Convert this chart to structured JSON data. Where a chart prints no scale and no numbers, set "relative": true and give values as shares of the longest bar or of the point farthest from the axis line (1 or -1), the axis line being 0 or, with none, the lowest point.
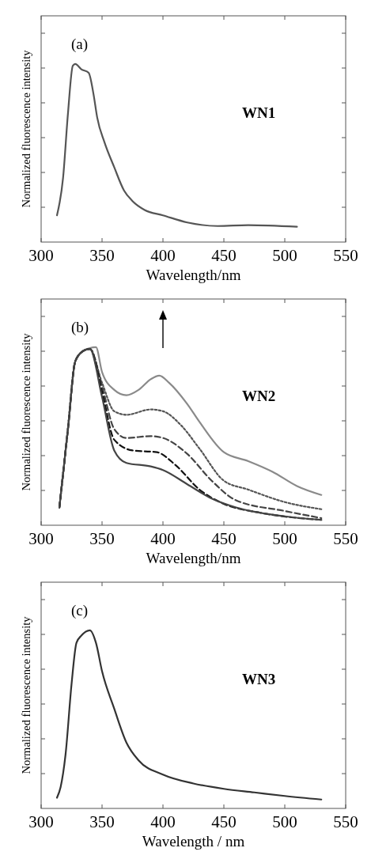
{
  "chart_data": [
    {
      "type": "line",
      "relative": true,
      "xlabel": "Wavelength/nm",
      "ylabel": "Normalized fluorescence intensity",
      "xlim": [
        300,
        550
      ],
      "xticks": [
        300,
        350,
        400,
        450,
        500,
        550
      ],
      "tick_labels": "x",
      "annotations": [
        "(a)",
        "WN1"
      ],
      "series": [
        {
          "color": "#555555",
          "line_style": "solid",
          "x": [
            313,
            318,
            322,
            326,
            328,
            333,
            339,
            343,
            346,
            352,
            360,
            368,
            375,
            385,
            400,
            420,
            445,
            470,
            510
          ],
          "values": [
            0.15,
            0.36,
            0.72,
            0.99,
            1.0,
            0.97,
            0.95,
            0.83,
            0.7,
            0.56,
            0.42,
            0.29,
            0.23,
            0.18,
            0.15,
            0.11,
            0.09,
            0.095,
            0.086
          ]
        }
      ]
    },
    {
      "type": "line",
      "relative": true,
      "xlabel": "Wavelength/nm",
      "ylabel": "Normalized fluorescence intensity",
      "xlim": [
        300,
        550
      ],
      "xticks": [
        300,
        350,
        400,
        450,
        500,
        550
      ],
      "tick_labels": "x",
      "annotations": [
        "(b)",
        "WN2"
      ],
      "series": [
        {
          "color": "#8a8a8a",
          "line_style": "solid",
          "x": [
            315,
            322,
            328,
            335,
            345,
            350,
            360,
            370,
            380,
            390,
            397,
            405,
            420,
            430,
            450,
            470,
            490,
            510,
            530
          ],
          "values": [
            0.1,
            0.54,
            0.92,
            0.98,
            1.0,
            0.86,
            0.76,
            0.73,
            0.76,
            0.82,
            0.84,
            0.8,
            0.68,
            0.58,
            0.41,
            0.36,
            0.3,
            0.22,
            0.17
          ]
        },
        {
          "color": "#555555",
          "line_style": "dotted",
          "x": [
            315,
            322,
            328,
            335,
            340,
            350,
            360,
            370,
            390,
            400,
            415,
            430,
            450,
            470,
            500,
            530
          ],
          "values": [
            0.1,
            0.54,
            0.92,
            0.98,
            0.99,
            0.8,
            0.64,
            0.62,
            0.65,
            0.64,
            0.56,
            0.43,
            0.25,
            0.2,
            0.13,
            0.09
          ]
        },
        {
          "color": "#444444",
          "line_style": "dashed",
          "x": [
            315,
            322,
            328,
            335,
            340,
            350,
            360,
            370,
            390,
            400,
            420,
            440,
            460,
            500,
            530
          ],
          "values": [
            0.1,
            0.54,
            0.92,
            0.98,
            0.99,
            0.78,
            0.54,
            0.49,
            0.5,
            0.49,
            0.4,
            0.25,
            0.14,
            0.08,
            0.04
          ]
        },
        {
          "color": "#111111",
          "line_style": "dashed",
          "x": [
            315,
            322,
            328,
            335,
            340,
            350,
            360,
            375,
            395,
            410,
            430,
            450,
            480,
            530
          ],
          "values": [
            0.1,
            0.54,
            0.92,
            0.98,
            0.99,
            0.75,
            0.48,
            0.42,
            0.41,
            0.34,
            0.2,
            0.12,
            0.07,
            0.03
          ]
        },
        {
          "color": "#444444",
          "line_style": "solid",
          "x": [
            315,
            322,
            328,
            335,
            340,
            350,
            360,
            370,
            390,
            400,
            420,
            440,
            460,
            500,
            530
          ],
          "values": [
            0.1,
            0.54,
            0.92,
            0.98,
            0.99,
            0.72,
            0.42,
            0.35,
            0.33,
            0.31,
            0.23,
            0.15,
            0.1,
            0.05,
            0.03
          ]
        }
      ]
    },
    {
      "type": "line",
      "relative": true,
      "xlabel": "Wavelength / nm",
      "ylabel": "Normalized fluorescence intensity",
      "xlim": [
        300,
        550
      ],
      "xticks": [
        300,
        350,
        400,
        450,
        500,
        550
      ],
      "tick_labels": "x",
      "annotations": [
        "(c)",
        "WN3"
      ],
      "series": [
        {
          "color": "#333333",
          "line_style": "solid",
          "x": [
            313,
            316,
            320,
            325,
            329,
            333,
            340,
            345,
            350,
            360,
            370,
            380,
            400,
            425,
            450,
            475,
            500,
            530
          ],
          "values": [
            0.06,
            0.12,
            0.3,
            0.7,
            0.93,
            0.97,
            1.0,
            0.93,
            0.77,
            0.56,
            0.37,
            0.27,
            0.19,
            0.14,
            0.11,
            0.09,
            0.07,
            0.05
          ]
        }
      ]
    }
  ]
}
